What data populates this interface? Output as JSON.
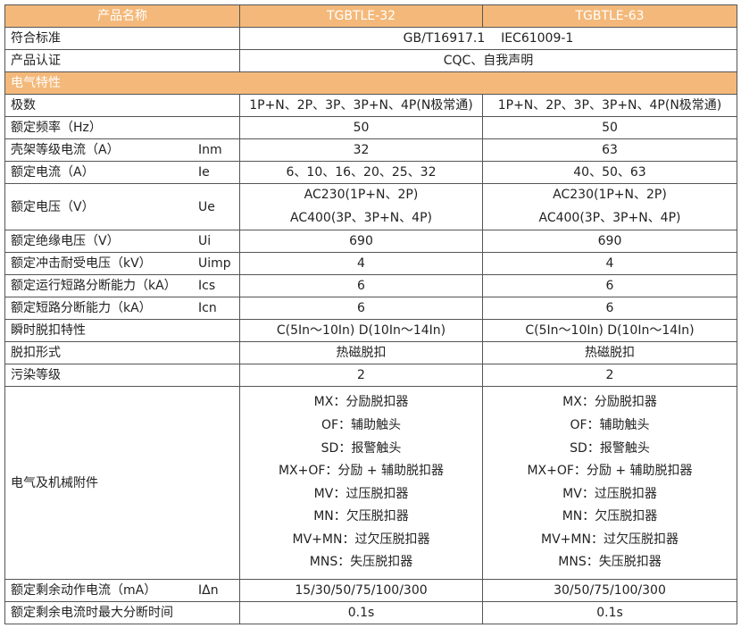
{
  "header": {
    "name": "产品名称",
    "models": [
      "TGBTLE-32",
      "TGBTLE-63"
    ]
  },
  "standard": {
    "label": "符合标准",
    "value": "GB/T16917.1    IEC61009-1"
  },
  "cert": {
    "label": "产品认证",
    "value": "CQC、自我声明"
  },
  "section": "电气特性",
  "rows": [
    {
      "label": "极数",
      "sym": "",
      "v1": "1P+N、2P、3P、3P+N、4P(N极常通)",
      "v2": "1P+N、2P、3P、3P+N、4P(N极常通)"
    },
    {
      "label": "额定频率（Hz）",
      "sym": "",
      "v1": "50",
      "v2": "50"
    },
    {
      "label": "壳架等级电流（A）",
      "sym": "Inm",
      "v1": "32",
      "v2": "63"
    },
    {
      "label": "额定电流（A）",
      "sym": "Ie",
      "v1": "6、10、16、20、25、32",
      "v2": "40、50、63"
    },
    {
      "label": "额定电压（V）",
      "sym": "Ue",
      "v1": [
        "AC230(1P+N、2P)",
        "AC400(3P、3P+N、4P)"
      ],
      "v2": [
        "AC230(1P+N、2P)",
        "AC400(3P、3P+N、4P)"
      ]
    },
    {
      "label": "额定绝缘电压（V）",
      "sym": "Ui",
      "v1": "690",
      "v2": "690"
    },
    {
      "label": "额定冲击耐受电压（kV）",
      "sym": "Uimp",
      "v1": "4",
      "v2": "4"
    },
    {
      "label": "额定运行短路分断能力（kA）",
      "sym": "Ics",
      "v1": "6",
      "v2": "6"
    },
    {
      "label": "额定短路分断能力（kA）",
      "sym": "Icn",
      "v1": "6",
      "v2": "6"
    },
    {
      "label": "瞬时脱扣特性",
      "sym": "",
      "v1": "C(5In～10In) D(10In～14In)",
      "v2": "C(5In～10In) D(10In～14In)"
    },
    {
      "label": "脱扣形式",
      "sym": "",
      "v1": "热磁脱扣",
      "v2": "热磁脱扣"
    },
    {
      "label": "污染等级",
      "sym": "",
      "v1": "2",
      "v2": "2"
    }
  ],
  "accessories": {
    "label": "电气及机械附件",
    "items": [
      "MX：分励脱扣器",
      "OF：辅助触头",
      "SD：报警触头",
      "MX+OF：分励 + 辅助脱扣器",
      "MV：过压脱扣器",
      "MN：欠压脱扣器",
      "MV+MN：过欠压脱扣器",
      "MNS：失压脱扣器"
    ]
  },
  "residual": {
    "label": "额定剩余动作电流（mA）",
    "sym": "IΔn",
    "v1": "15/30/50/75/100/300",
    "v2": "30/50/75/100/300"
  },
  "break_time": {
    "label": "额定剩余电流时最大分断时间",
    "v1": "0.1s",
    "v2": "0.1s"
  },
  "colors": {
    "header_bg": "#f4b97a",
    "border": "#555555"
  }
}
